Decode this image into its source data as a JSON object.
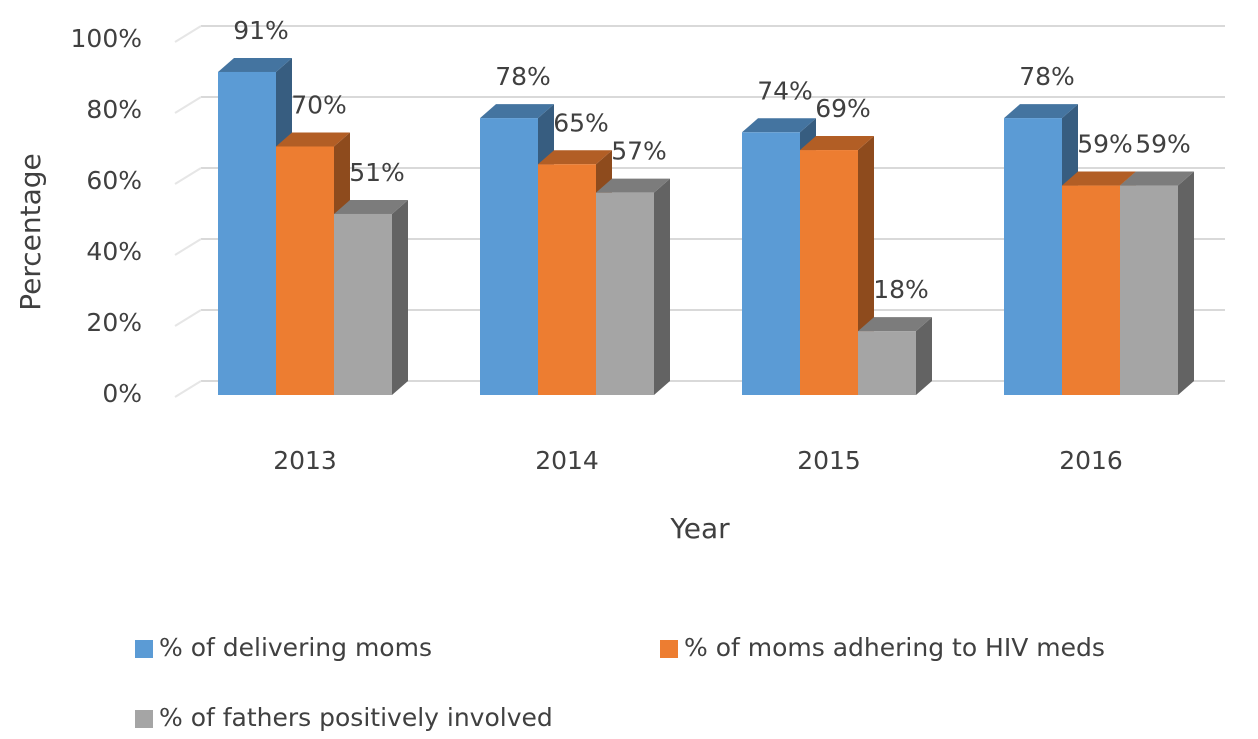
{
  "chart_data": {
    "type": "bar3d",
    "categories": [
      "2013",
      "2014",
      "2015",
      "2016"
    ],
    "series": [
      {
        "name": "% of delivering moms",
        "color": "#5b9bd5",
        "values": [
          91,
          78,
          74,
          78
        ],
        "value_labels": [
          "91%",
          "78%",
          "74%",
          "78%"
        ]
      },
      {
        "name": "% of moms adhering to HIV meds",
        "color": "#ed7d31",
        "values": [
          70,
          65,
          69,
          59
        ],
        "value_labels": [
          "70%",
          "65%",
          "69%",
          "59%"
        ]
      },
      {
        "name": "% of fathers positively involved",
        "color": "#a5a5a5",
        "values": [
          51,
          57,
          18,
          59
        ],
        "value_labels": [
          "51%",
          "57%",
          "18%",
          "59%"
        ]
      }
    ],
    "x_label": "Year",
    "y_label": "Percentage",
    "ylim": [
      0,
      100
    ],
    "yticks": [
      {
        "value": 0,
        "label": "0%"
      },
      {
        "value": 20,
        "label": "20%"
      },
      {
        "value": 40,
        "label": "40%"
      },
      {
        "value": 60,
        "label": "60%"
      },
      {
        "value": 80,
        "label": "80%"
      },
      {
        "value": 100,
        "label": "100%"
      }
    ],
    "grid": true,
    "legend": "bottom"
  }
}
